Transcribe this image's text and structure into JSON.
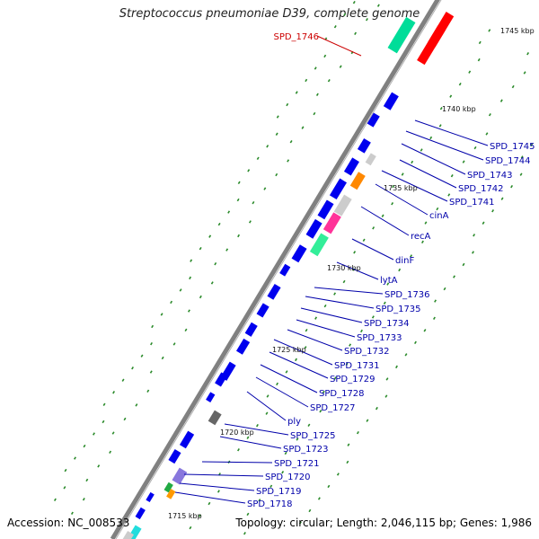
{
  "title": "Streptococcus pneumoniae D39, complete genome",
  "accession_label": "Accession:",
  "accession": "NC_008533",
  "topology_text": "Topology: circular; Length: 2,046,115 bp; Genes: 1,986",
  "colors": {
    "backbone": "#808080",
    "gene_default": "#0000ee",
    "label": "#0000aa",
    "highlight": "#cc0000",
    "gc_dots": "#2a8a2a"
  },
  "kbp_ticks": [
    "1745 kbp",
    "1740 kbp",
    "1735 kbp",
    "1730 kbp",
    "1725 kbp",
    "1720 kbp",
    "1715 kbp"
  ],
  "gene_labels": [
    {
      "name": "SPD_1746",
      "highlight": true
    },
    {
      "name": "SPD_1745"
    },
    {
      "name": "SPD_1744"
    },
    {
      "name": "SPD_1743"
    },
    {
      "name": "SPD_1742"
    },
    {
      "name": "SPD_1741"
    },
    {
      "name": "cinA"
    },
    {
      "name": "recA"
    },
    {
      "name": "dinF"
    },
    {
      "name": "lytA"
    },
    {
      "name": "SPD_1736"
    },
    {
      "name": "SPD_1735"
    },
    {
      "name": "SPD_1734"
    },
    {
      "name": "SPD_1733"
    },
    {
      "name": "SPD_1732"
    },
    {
      "name": "SPD_1731"
    },
    {
      "name": "SPD_1729"
    },
    {
      "name": "SPD_1728"
    },
    {
      "name": "SPD_1727"
    },
    {
      "name": "ply"
    },
    {
      "name": "SPD_1725"
    },
    {
      "name": "SPD_1723"
    },
    {
      "name": "SPD_1721"
    },
    {
      "name": "SPD_1720"
    },
    {
      "name": "SPD_1719"
    },
    {
      "name": "SPD_1718"
    }
  ]
}
